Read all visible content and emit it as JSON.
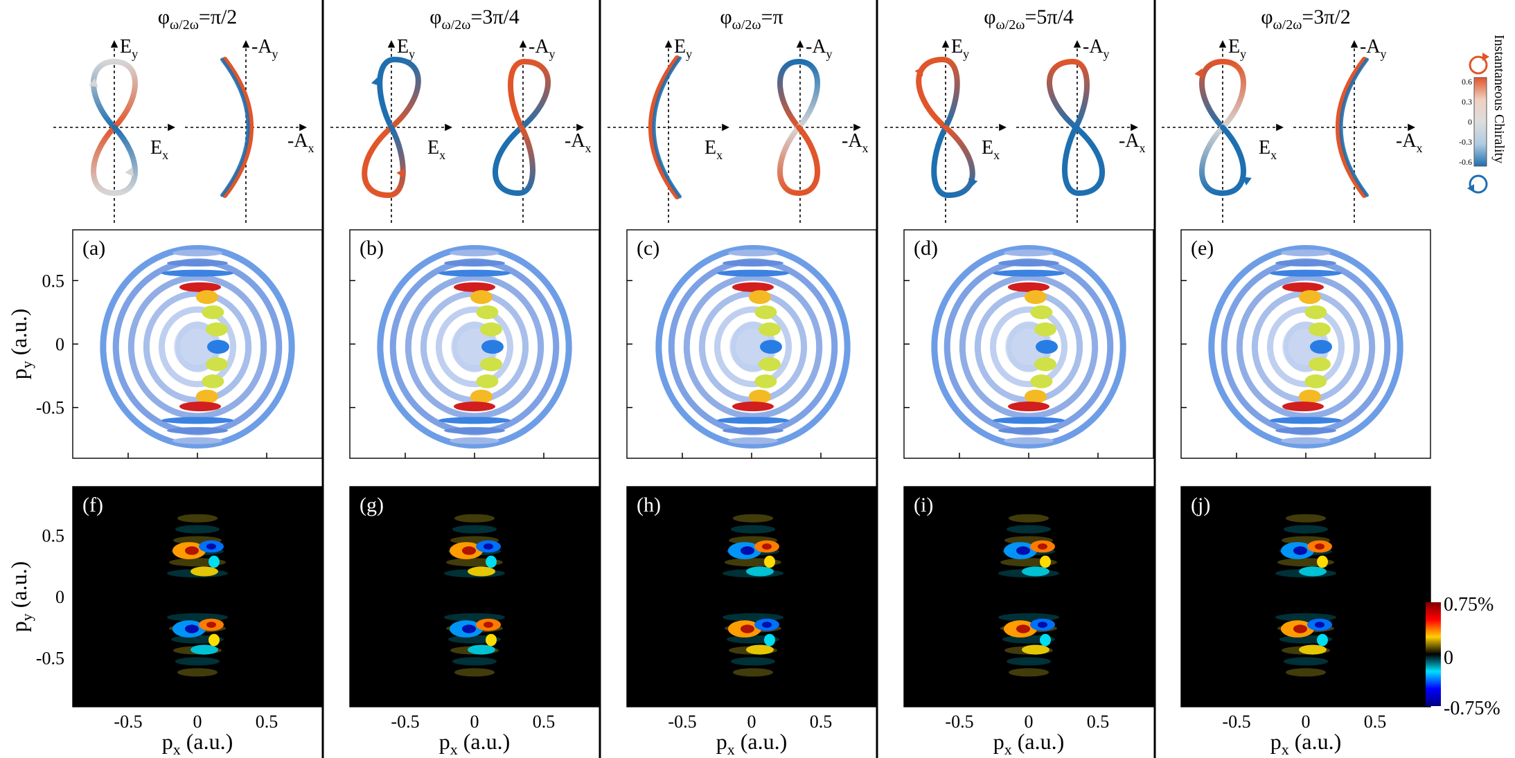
{
  "columns": [
    {
      "phase": "φ",
      "phase_sub": "ω/2ω",
      "phase_val": "=π/2",
      "label_top": "(a)",
      "label_bot": "(f)",
      "chir_left": [
        0,
        1,
        0,
        -1
      ],
      "chir_right": [
        1,
        1,
        1,
        1
      ]
    },
    {
      "phase": "φ",
      "phase_sub": "ω/2ω",
      "phase_val": "=3π/4",
      "label_top": "(b)",
      "label_bot": "(g)",
      "chir_left": [
        -1,
        1,
        1,
        -1
      ],
      "chir_right": [
        1,
        -1,
        -1,
        1
      ]
    },
    {
      "phase": "φ",
      "phase_sub": "ω/2ω",
      "phase_val": "=π",
      "label_top": "(c)",
      "label_bot": "(h)",
      "chir_left": [
        1,
        1,
        1,
        1
      ],
      "chir_right": [
        -1,
        0,
        1,
        1
      ]
    },
    {
      "phase": "φ",
      "phase_sub": "ω/2ω",
      "phase_val": "=5π/4",
      "label_top": "(d)",
      "label_bot": "(i)",
      "chir_left": [
        1,
        -1,
        -1,
        1
      ],
      "chir_right": [
        1,
        -1,
        -1,
        -1
      ]
    },
    {
      "phase": "φ",
      "phase_sub": "ω/2ω",
      "phase_val": "=3π/2",
      "label_top": "(e)",
      "label_bot": "(j)",
      "chir_left": [
        1,
        0,
        -1,
        -1
      ],
      "chir_right": [
        -1,
        -1,
        -1,
        -1
      ]
    }
  ],
  "field_labels": {
    "ey": "E",
    "ey_sub": "y",
    "ex": "E",
    "ex_sub": "x",
    "ay": "-A",
    "ay_sub": "y",
    "ax": "-A",
    "ax_sub": "x"
  },
  "axes": {
    "y_label": "p",
    "y_sub": "y",
    "y_unit": " (a.u.)",
    "x_label": "p",
    "x_sub": "x",
    "x_unit": " (a.u.)",
    "y_ticks": [
      "0.5",
      "0",
      "-0.5"
    ],
    "x_ticks": [
      "-0.5",
      "0",
      "0.5"
    ]
  },
  "chirality_bar": {
    "title": "Instantaneous Chirality",
    "ticks": [
      "0.6",
      "0.3",
      "0",
      "-0.3",
      "-0.6"
    ],
    "colors": [
      "#e0552a",
      "#f0d0c0",
      "#dddddd",
      "#b0cce0",
      "#1e6fb0"
    ]
  },
  "diff_bar": {
    "ticks": [
      "0.75%",
      "0",
      "-0.75%"
    ],
    "colors": [
      "#800000",
      "#ff0000",
      "#ffd000",
      "#000000",
      "#00e0ff",
      "#0000ff",
      "#000080"
    ]
  },
  "colors": {
    "orange": "#e0552a",
    "blue": "#1e6fb0",
    "separator": "#000000"
  },
  "chart_data": [
    {
      "type": "heatmap",
      "title": "(a)",
      "ylabel": "py (a.u.)",
      "xlim": [
        -0.9,
        0.9
      ],
      "ylim": [
        -0.9,
        0.9
      ]
    },
    {
      "type": "heatmap",
      "title": "(b)",
      "xlim": [
        -0.9,
        0.9
      ],
      "ylim": [
        -0.9,
        0.9
      ]
    },
    {
      "type": "heatmap",
      "title": "(c)",
      "xlim": [
        -0.9,
        0.9
      ],
      "ylim": [
        -0.9,
        0.9
      ]
    },
    {
      "type": "heatmap",
      "title": "(d)",
      "xlim": [
        -0.9,
        0.9
      ],
      "ylim": [
        -0.9,
        0.9
      ]
    },
    {
      "type": "heatmap",
      "title": "(e)",
      "xlim": [
        -0.9,
        0.9
      ],
      "ylim": [
        -0.9,
        0.9
      ]
    },
    {
      "type": "heatmap",
      "title": "(f)",
      "xlabel": "px (a.u.)",
      "ylabel": "py (a.u.)",
      "xlim": [
        -0.9,
        0.9
      ],
      "ylim": [
        -0.9,
        0.9
      ],
      "zlim": [
        "-0.75%",
        "0.75%"
      ]
    },
    {
      "type": "heatmap",
      "title": "(g)",
      "xlabel": "px (a.u.)",
      "xlim": [
        -0.9,
        0.9
      ],
      "ylim": [
        -0.9,
        0.9
      ]
    },
    {
      "type": "heatmap",
      "title": "(h)",
      "xlabel": "px (a.u.)",
      "xlim": [
        -0.9,
        0.9
      ],
      "ylim": [
        -0.9,
        0.9
      ]
    },
    {
      "type": "heatmap",
      "title": "(i)",
      "xlabel": "px (a.u.)",
      "xlim": [
        -0.9,
        0.9
      ],
      "ylim": [
        -0.9,
        0.9
      ]
    },
    {
      "type": "heatmap",
      "title": "(j)",
      "xlabel": "px (a.u.)",
      "xlim": [
        -0.9,
        0.9
      ],
      "ylim": [
        -0.9,
        0.9
      ]
    }
  ]
}
